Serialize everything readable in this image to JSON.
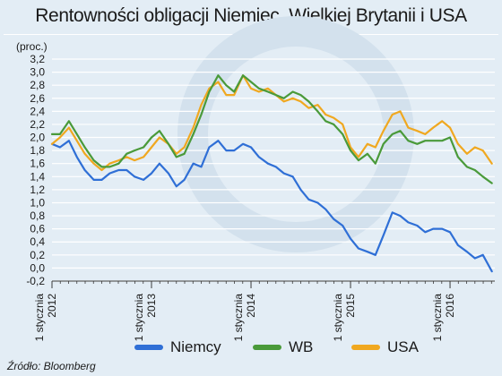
{
  "title": "Rentowności obligacji Niemiec, Wielkiej Brytanii i USA",
  "source": "Źródło: Bloomberg",
  "chart_data": {
    "type": "line",
    "title": "Rentowności obligacji Niemiec, Wielkiej Brytanii i USA",
    "ylabel": "(proc.)",
    "xlabel": "",
    "ylim": [
      -0.2,
      3.2
    ],
    "xlim": [
      2012.0,
      2016.45
    ],
    "y_ticks": [
      -0.2,
      0.0,
      0.2,
      0.4,
      0.6,
      0.8,
      1.0,
      1.2,
      1.4,
      1.6,
      1.8,
      2.0,
      2.2,
      2.4,
      2.6,
      2.8,
      3.0,
      3.2
    ],
    "y_tick_labels": [
      "-0,2",
      "0,0",
      "0,2",
      "0,4",
      "0,6",
      "0,8",
      "1,0",
      "1,2",
      "1,4",
      "1,6",
      "1,8",
      "2,0",
      "2,2",
      "2,4",
      "2,6",
      "2,8",
      "3,0",
      "3,2"
    ],
    "x_ticks": [
      {
        "x": 2012,
        "line1": "1 stycznia",
        "line2": "2012"
      },
      {
        "x": 2013,
        "line1": "1 stycznia",
        "line2": "2013"
      },
      {
        "x": 2014,
        "line1": "1 stycznia",
        "line2": "2014"
      },
      {
        "x": 2015,
        "line1": "1 stycznia",
        "line2": "2015"
      },
      {
        "x": 2016,
        "line1": "1 stycznia",
        "line2": "2016"
      }
    ],
    "grid": true,
    "legend_position": "bottom",
    "x": [
      2012.0,
      2012.08,
      2012.17,
      2012.25,
      2012.33,
      2012.42,
      2012.5,
      2012.58,
      2012.67,
      2012.75,
      2012.83,
      2012.92,
      2013.0,
      2013.08,
      2013.17,
      2013.25,
      2013.33,
      2013.42,
      2013.5,
      2013.58,
      2013.67,
      2013.75,
      2013.83,
      2013.92,
      2014.0,
      2014.08,
      2014.17,
      2014.25,
      2014.33,
      2014.42,
      2014.5,
      2014.58,
      2014.67,
      2014.75,
      2014.83,
      2014.92,
      2015.0,
      2015.08,
      2015.17,
      2015.25,
      2015.33,
      2015.42,
      2015.5,
      2015.58,
      2015.67,
      2015.75,
      2015.83,
      2015.92,
      2016.0,
      2016.08,
      2016.17,
      2016.25,
      2016.33,
      2016.42
    ],
    "series": [
      {
        "name": "Niemcy",
        "color": "#2f6fd6",
        "values": [
          1.9,
          1.85,
          1.95,
          1.7,
          1.5,
          1.35,
          1.35,
          1.45,
          1.5,
          1.5,
          1.4,
          1.35,
          1.45,
          1.6,
          1.45,
          1.25,
          1.35,
          1.6,
          1.55,
          1.85,
          1.95,
          1.8,
          1.8,
          1.9,
          1.85,
          1.7,
          1.6,
          1.55,
          1.45,
          1.4,
          1.2,
          1.05,
          1.0,
          0.9,
          0.75,
          0.65,
          0.45,
          0.3,
          0.25,
          0.2,
          0.5,
          0.85,
          0.8,
          0.7,
          0.65,
          0.55,
          0.6,
          0.6,
          0.55,
          0.35,
          0.25,
          0.15,
          0.2,
          -0.05
        ]
      },
      {
        "name": "WB",
        "color": "#4a9a3a",
        "values": [
          2.05,
          2.05,
          2.25,
          2.05,
          1.85,
          1.65,
          1.55,
          1.55,
          1.6,
          1.75,
          1.8,
          1.85,
          2.0,
          2.1,
          1.9,
          1.7,
          1.75,
          2.05,
          2.35,
          2.7,
          2.95,
          2.8,
          2.7,
          2.95,
          2.85,
          2.75,
          2.7,
          2.65,
          2.6,
          2.7,
          2.65,
          2.55,
          2.4,
          2.25,
          2.2,
          2.05,
          1.8,
          1.65,
          1.75,
          1.6,
          1.9,
          2.05,
          2.1,
          1.95,
          1.9,
          1.95,
          1.95,
          1.95,
          2.0,
          1.7,
          1.55,
          1.5,
          1.4,
          1.3
        ]
      },
      {
        "name": "USA",
        "color": "#f0a820",
        "values": [
          1.9,
          2.0,
          2.15,
          1.95,
          1.75,
          1.6,
          1.5,
          1.6,
          1.65,
          1.7,
          1.65,
          1.7,
          1.85,
          2.0,
          1.9,
          1.75,
          1.85,
          2.15,
          2.5,
          2.75,
          2.85,
          2.65,
          2.65,
          2.95,
          2.75,
          2.7,
          2.75,
          2.65,
          2.55,
          2.6,
          2.55,
          2.45,
          2.5,
          2.35,
          2.3,
          2.2,
          1.85,
          1.7,
          1.9,
          1.85,
          2.1,
          2.35,
          2.4,
          2.15,
          2.1,
          2.05,
          2.15,
          2.25,
          2.15,
          1.9,
          1.75,
          1.85,
          1.8,
          1.6
        ]
      }
    ]
  },
  "legend": [
    {
      "label": "Niemcy",
      "color": "#2f6fd6"
    },
    {
      "label": "WB",
      "color": "#4a9a3a"
    },
    {
      "label": "USA",
      "color": "#f0a820"
    }
  ]
}
